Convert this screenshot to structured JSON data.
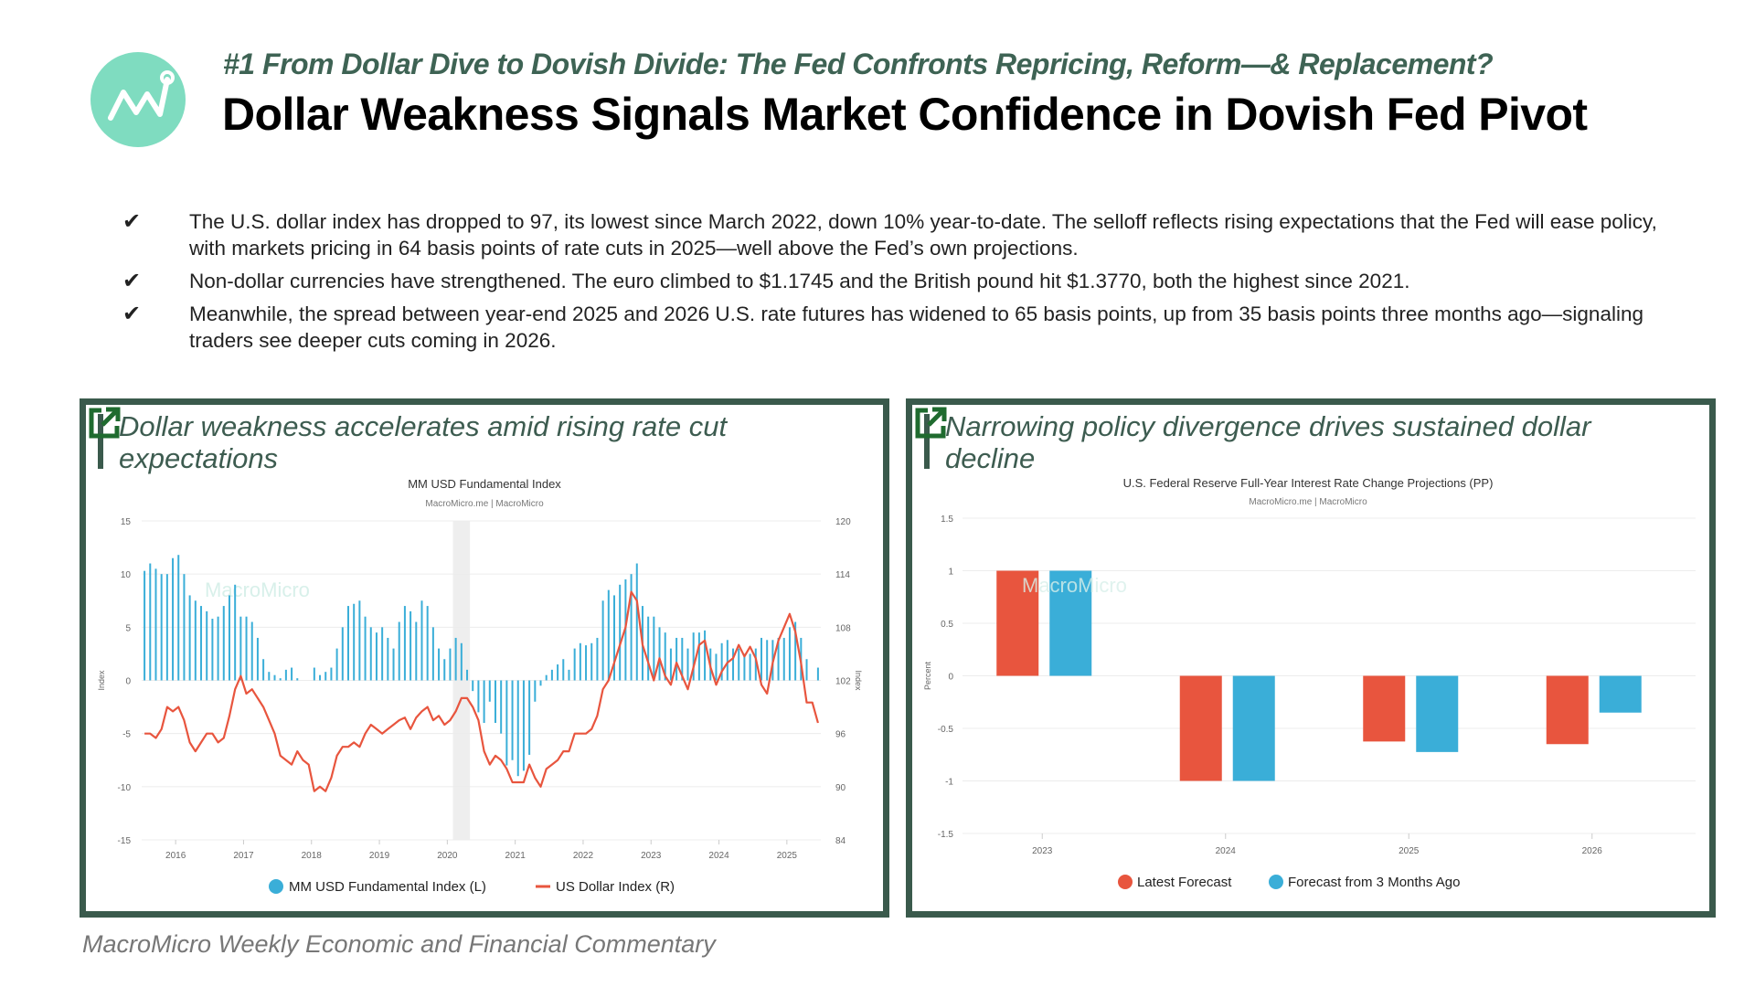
{
  "header": {
    "subtitle": "#1 From Dollar Dive to Dovish Divide: The Fed Confronts Repricing, Reform—& Replacement?",
    "title": "Dollar Weakness Signals Market Confidence in Dovish Fed Pivot",
    "logo_icon": "chart-line-icon"
  },
  "bullets": [
    {
      "icon": "checkmark-icon",
      "text": "The U.S. dollar index has dropped to  97, its lowest since March 2022, down 10% year-to-date. The selloff reflects rising expectations that the Fed will ease policy, with markets pricing in 64 basis points of rate cuts in 2025—well above the Fed’s own projections."
    },
    {
      "icon": "checkmark-icon",
      "text": "Non-dollar currencies have strengthened. The euro climbed to $1.1745 and the British pound hit $1.3770, both the highest since 2021."
    },
    {
      "icon": "checkmark-icon",
      "text": "Meanwhile, the spread between year-end 2025 and 2026 U.S. rate futures has widened to 65 basis points, up from 35 basis points three months ago—signaling traders see deeper cuts coming in 2026."
    }
  ],
  "panels": [
    {
      "title": "Dollar weakness accelerates amid rising rate cut expectations",
      "icon": "external-link-icon"
    },
    {
      "title": "Narrowing policy divergence drives sustained dollar decline",
      "icon": "external-link-icon"
    }
  ],
  "footer": "MacroMicro Weekly Economic and Financial Commentary",
  "colors": {
    "accent": "#3a5a4c",
    "red": "#e8553e",
    "blue": "#3aaed8",
    "logo": "#7fdcc0",
    "link_icon": "#1f6b2f"
  },
  "chart_data": [
    {
      "type": "bar+line",
      "title": "MM USD Fundamental Index",
      "source": "MacroMicro.me | MacroMicro",
      "watermark": "MacroMicro",
      "ylabel_left": "Index",
      "ylabel_right": "Index",
      "ylim_left": [
        -15,
        15
      ],
      "yticks_left": [
        "15",
        "10",
        "5",
        "0",
        "-5",
        "-10",
        "-15"
      ],
      "ylim_right": [
        84,
        120
      ],
      "yticks_right": [
        "120",
        "114",
        "108",
        "102",
        "96",
        "90",
        "84"
      ],
      "xticks": [
        "2016",
        "2017",
        "2018",
        "2019",
        "2020",
        "2021",
        "2022",
        "2023",
        "2024",
        "2025"
      ],
      "x_start": "2015-07",
      "frequency": "monthly",
      "recession_shading": [
        "2020-02",
        "2020-04"
      ],
      "grid": true,
      "legend_placement": "bottom",
      "series": [
        {
          "name": "MM USD Fundamental Index (L)",
          "type": "bar",
          "axis": "left",
          "color": "#3aaed8",
          "values": [
            10.3,
            11,
            10.5,
            10,
            10,
            11.5,
            11.8,
            10,
            8,
            7.5,
            7,
            6.5,
            5.8,
            6,
            7,
            8,
            9,
            6,
            6,
            5.5,
            4,
            2,
            0.8,
            0.5,
            0.2,
            1,
            1.2,
            0.2,
            0,
            0,
            1.2,
            0.5,
            0.8,
            1.2,
            3,
            5,
            7,
            7.2,
            7.5,
            6,
            5,
            4.5,
            5,
            4,
            3,
            5.5,
            7,
            6.5,
            5.5,
            7.5,
            7,
            5,
            3,
            2,
            3,
            4,
            3.5,
            1,
            -1,
            -3,
            -4,
            -2,
            -4,
            -5,
            -8,
            -7.5,
            -9,
            -8.5,
            -7,
            -2,
            -0.5,
            0.5,
            1,
            1.5,
            2,
            1,
            3,
            3.5,
            3.3,
            3.5,
            4,
            7.5,
            8.5,
            8,
            9,
            9.5,
            10,
            11,
            7,
            6,
            6,
            5,
            4.5,
            3,
            4,
            4,
            3,
            4.5,
            4.5,
            4.7,
            3,
            2.5,
            3.5,
            3.8,
            3,
            3,
            2.5,
            2.5,
            3,
            4,
            3.8,
            3.8,
            4,
            4,
            5,
            5.5,
            4,
            2,
            0,
            1.2
          ]
        },
        {
          "name": "US Dollar Index (R)",
          "type": "line",
          "axis": "right",
          "color": "#e8553e",
          "values": [
            96,
            96,
            95.5,
            96.5,
            99,
            98.5,
            99,
            97.5,
            95,
            94,
            95,
            96,
            96,
            95,
            95.5,
            98,
            101,
            102.5,
            100.5,
            101,
            100,
            99,
            97.5,
            96,
            93.5,
            93,
            92.5,
            94,
            93,
            92.5,
            89.5,
            90,
            89.5,
            91,
            93.5,
            94.5,
            94.5,
            95,
            94.5,
            96,
            97,
            96.5,
            96,
            96.5,
            97,
            97.5,
            97.8,
            96.5,
            97.8,
            98.5,
            99,
            97.5,
            98,
            97,
            97.5,
            98.5,
            100,
            100,
            99,
            97.5,
            94,
            92.5,
            93.5,
            93,
            92,
            90.5,
            90.5,
            90.5,
            92.5,
            91,
            90,
            92,
            92.5,
            93,
            94,
            94,
            96,
            96,
            96,
            96.5,
            98,
            101,
            102,
            104,
            106,
            108,
            112,
            111,
            106,
            104,
            102,
            104.5,
            102.5,
            101.5,
            104,
            102.5,
            101,
            103.5,
            106,
            106.5,
            103.5,
            101.5,
            103,
            104,
            104.5,
            106,
            104.7,
            105.8,
            104.5,
            101.5,
            100.5,
            104,
            106.5,
            108,
            109.5,
            107.5,
            104,
            99.5,
            99.5,
            97.2
          ]
        }
      ]
    },
    {
      "type": "bar",
      "title": "U.S. Federal Reserve Full-Year Interest Rate Change Projections (PP)",
      "source": "MacroMicro.me | MacroMicro",
      "watermark": "MacroMicro",
      "ylabel": "Percent",
      "ylim": [
        -1.5,
        1.5
      ],
      "yticks": [
        "1.5",
        "1",
        "0.5",
        "0",
        "-0.5",
        "-1",
        "-1.5"
      ],
      "categories": [
        "2023",
        "2024",
        "2025",
        "2026"
      ],
      "grid": true,
      "legend_placement": "bottom",
      "series": [
        {
          "name": "Latest Forecast",
          "color": "#e8553e",
          "values": [
            1,
            -1,
            -0.625,
            -0.65
          ]
        },
        {
          "name": "Forecast from 3 Months Ago",
          "color": "#3aaed8",
          "values": [
            1,
            -1,
            -0.725,
            -0.35
          ]
        }
      ]
    }
  ]
}
